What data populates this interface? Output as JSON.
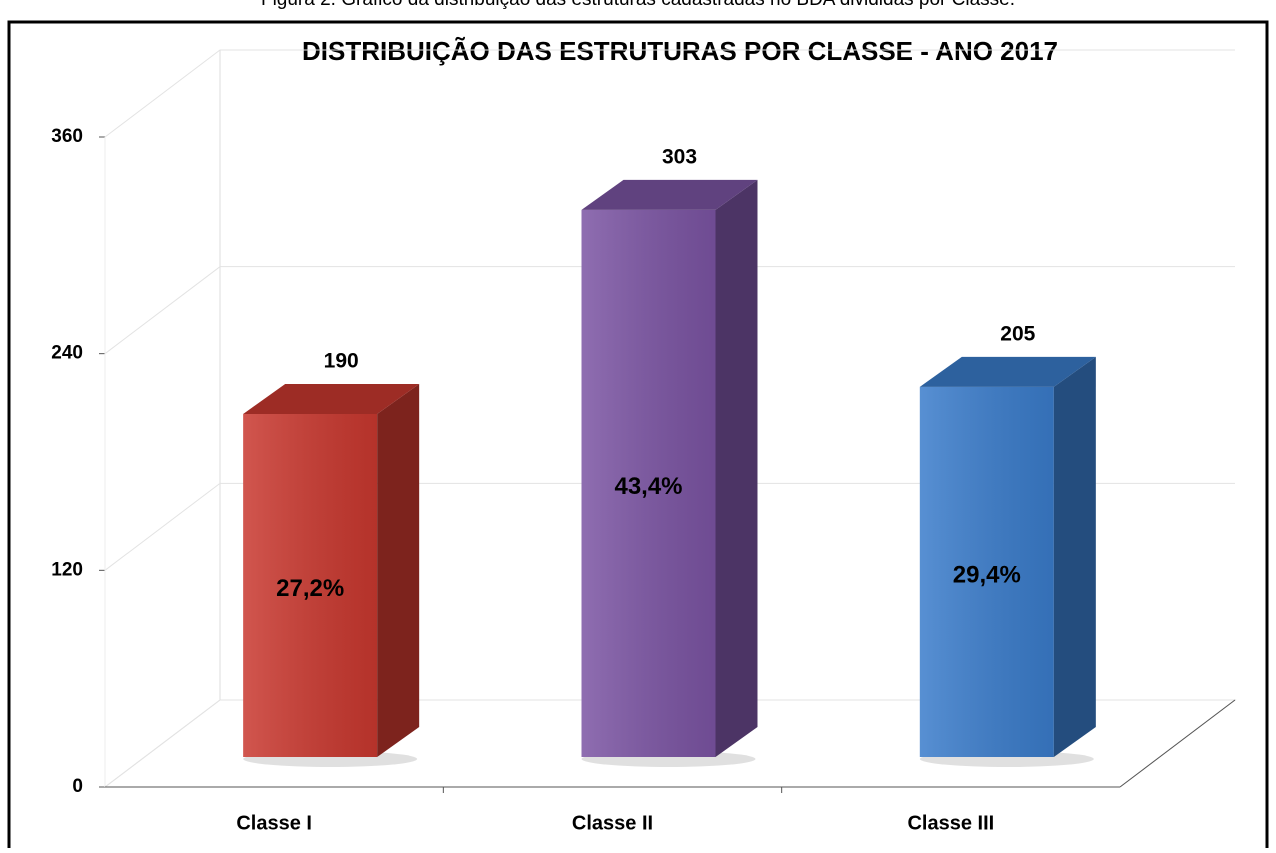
{
  "caption": "Figura 2. Gráfico da distribuição das estruturas cadastradas no BDA divididas por Classe.",
  "chart_data": {
    "type": "bar3d",
    "title": "DISTRIBUIÇÃO DAS ESTRUTURAS POR CLASSE - ANO 2017",
    "categories": [
      "Classe I",
      "Classe II",
      "Classe III"
    ],
    "values": [
      190,
      303,
      205
    ],
    "percentage_labels": [
      "27,2%",
      "43,4%",
      "29,4%"
    ],
    "colors": [
      "#c9382f",
      "#7b54a3",
      "#3a7ccb"
    ],
    "ylim": [
      0,
      360
    ],
    "yticks": [
      0,
      120,
      240,
      360
    ],
    "grid": true
  }
}
